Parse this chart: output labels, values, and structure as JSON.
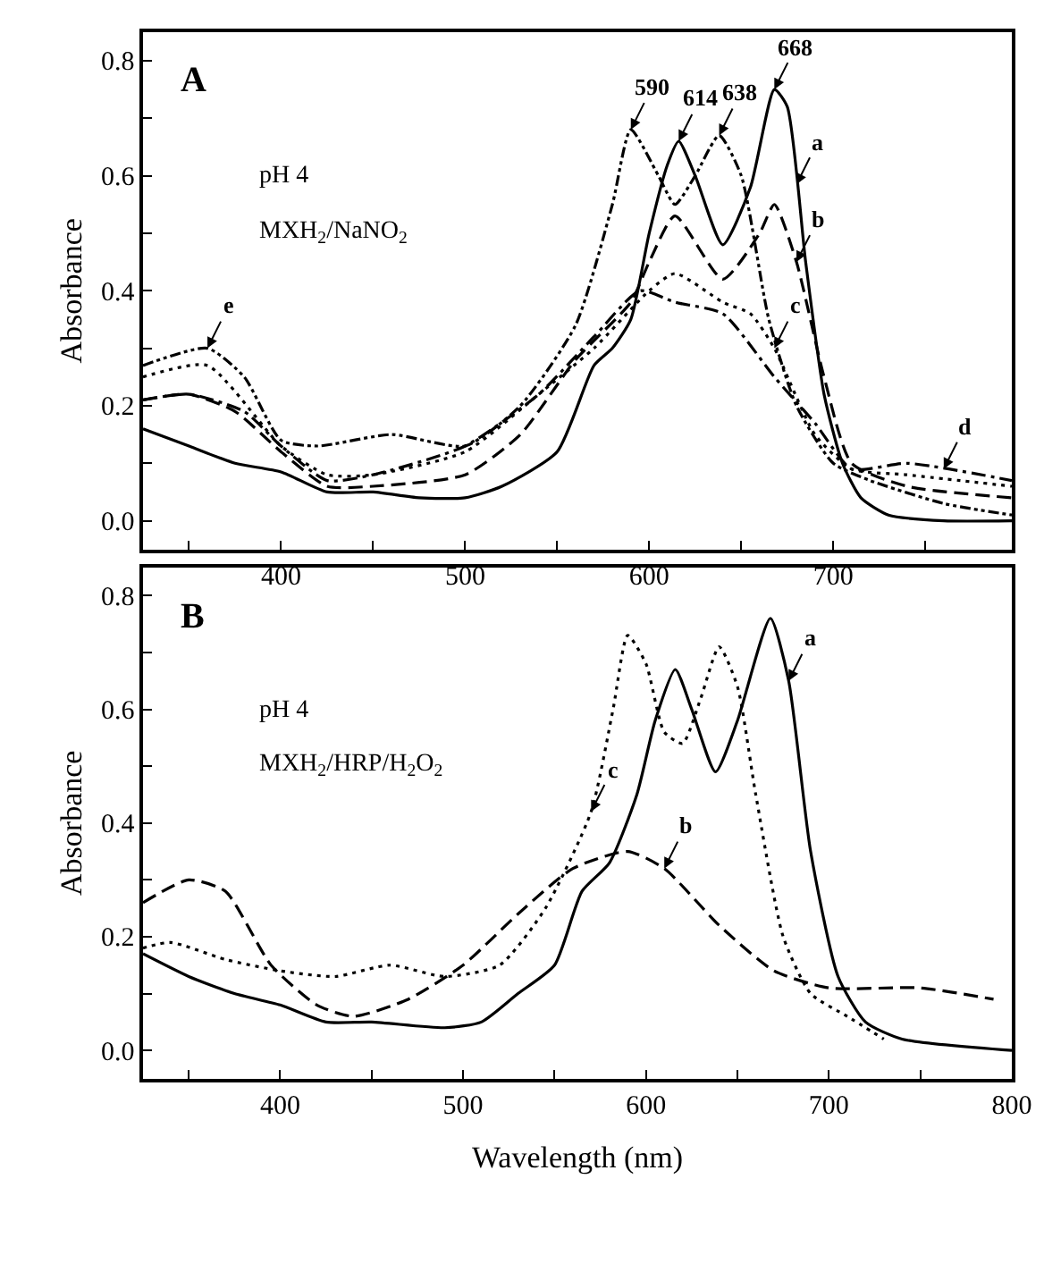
{
  "chart_data": [
    {
      "type": "line",
      "title": "A",
      "ylabel": "Absorbance",
      "xlim": [
        325,
        797
      ],
      "ylim": [
        -0.05,
        0.85
      ],
      "xticks": [
        {
          "value": 350,
          "label": null
        },
        400,
        {
          "value": 450,
          "label": null
        },
        500,
        {
          "value": 550,
          "label": null
        },
        600,
        {
          "value": 650,
          "label": null
        },
        700,
        {
          "value": 750,
          "label": null
        }
      ],
      "yticks": [
        "0.0",
        {
          "value": 0.1,
          "label": null
        },
        0.2,
        {
          "value": 0.3,
          "label": null
        },
        0.4,
        {
          "value": 0.5,
          "label": null
        },
        0.6,
        {
          "value": 0.7,
          "label": null
        },
        0.8
      ],
      "grid": false,
      "series": [
        {
          "color": "#000000",
          "line_style": "solid",
          "x": [
            325,
            350,
            375,
            400,
            425,
            450,
            475,
            500,
            520,
            550,
            570,
            580,
            590,
            600,
            610,
            616,
            625,
            640,
            655,
            668,
            675,
            685,
            695,
            705,
            715,
            730,
            760,
            797
          ],
          "values": [
            0.16,
            0.13,
            0.1,
            0.085,
            0.05,
            0.05,
            0.04,
            0.04,
            0.06,
            0.12,
            0.27,
            0.3,
            0.35,
            0.5,
            0.62,
            0.66,
            0.6,
            0.48,
            0.58,
            0.75,
            0.72,
            0.45,
            0.22,
            0.1,
            0.04,
            0.01,
            0.0,
            0.0
          ]
        },
        {
          "color": "#000000",
          "line_style": "dashed",
          "x": [
            325,
            350,
            375,
            400,
            425,
            450,
            500,
            530,
            560,
            590,
            600,
            614,
            640,
            660,
            668,
            680,
            695,
            710,
            740,
            797
          ],
          "values": [
            0.21,
            0.22,
            0.19,
            0.12,
            0.06,
            0.06,
            0.08,
            0.15,
            0.28,
            0.38,
            0.45,
            0.53,
            0.42,
            0.5,
            0.55,
            0.45,
            0.25,
            0.1,
            0.06,
            0.04
          ]
        },
        {
          "color": "#000000",
          "line_style": "dotted",
          "x": [
            325,
            360,
            400,
            425,
            450,
            500,
            540,
            570,
            600,
            614,
            640,
            655,
            668,
            690,
            710,
            740,
            797
          ],
          "values": [
            0.25,
            0.27,
            0.13,
            0.08,
            0.08,
            0.12,
            0.22,
            0.3,
            0.4,
            0.43,
            0.38,
            0.36,
            0.3,
            0.15,
            0.09,
            0.08,
            0.06
          ]
        },
        {
          "color": "#000000",
          "line_style": "dashdot",
          "x": [
            325,
            350,
            380,
            400,
            425,
            450,
            500,
            540,
            570,
            595,
            614,
            640,
            668,
            690,
            710,
            740,
            797
          ],
          "values": [
            0.21,
            0.22,
            0.19,
            0.13,
            0.07,
            0.08,
            0.13,
            0.22,
            0.32,
            0.4,
            0.38,
            0.36,
            0.25,
            0.17,
            0.09,
            0.1,
            0.07
          ]
        },
        {
          "color": "#000000",
          "line_style": "dashdotdot",
          "x": [
            325,
            360,
            380,
            400,
            420,
            460,
            500,
            530,
            560,
            580,
            590,
            605,
            614,
            625,
            638,
            650,
            665,
            680,
            700,
            720,
            760,
            797
          ],
          "values": [
            0.27,
            0.3,
            0.25,
            0.14,
            0.13,
            0.15,
            0.13,
            0.2,
            0.34,
            0.55,
            0.68,
            0.6,
            0.55,
            0.6,
            0.67,
            0.6,
            0.35,
            0.2,
            0.1,
            0.07,
            0.03,
            0.01
          ]
        }
      ],
      "annotations": [
        "pH 4",
        "MXH$_{2}$/NaNO$_{2}$",
        {
          "text": "590",
          "x": 590,
          "y": 0.68
        },
        {
          "text": "614",
          "x": 616,
          "y": 0.66
        },
        {
          "text": "638",
          "x": 638,
          "y": 0.67
        },
        {
          "text": "668",
          "x": 668,
          "y": 0.75
        },
        {
          "text": "a",
          "x": 680,
          "y": 0.585
        },
        {
          "text": "b",
          "x": 680,
          "y": 0.45
        },
        {
          "text": "c",
          "x": 668,
          "y": 0.3
        },
        {
          "text": "d",
          "x": 760,
          "y": 0.09
        },
        {
          "text": "e",
          "x": 360,
          "y": 0.3
        }
      ]
    },
    {
      "type": "line",
      "title": "B",
      "xlabel": "Wavelength (nm)",
      "ylabel": "Absorbance",
      "xlim": [
        325,
        800
      ],
      "ylim": [
        -0.05,
        0.85
      ],
      "xticks": [
        {
          "value": 350,
          "label": null
        },
        400,
        {
          "value": 450,
          "label": null
        },
        500,
        {
          "value": 550,
          "label": null
        },
        600,
        {
          "value": 650,
          "label": null
        },
        700,
        {
          "value": 750,
          "label": null
        },
        800
      ],
      "yticks": [
        "0.0",
        {
          "value": 0.1,
          "label": null
        },
        0.2,
        {
          "value": 0.3,
          "label": null
        },
        0.4,
        {
          "value": 0.5,
          "label": null
        },
        0.6,
        {
          "value": 0.7,
          "label": null
        },
        0.8
      ],
      "grid": false,
      "series": [
        {
          "color": "#000000",
          "line_style": "solid",
          "x": [
            325,
            350,
            375,
            400,
            425,
            450,
            490,
            510,
            530,
            550,
            565,
            580,
            595,
            605,
            616,
            625,
            638,
            650,
            668,
            678,
            690,
            705,
            720,
            740,
            800
          ],
          "values": [
            0.17,
            0.13,
            0.1,
            0.08,
            0.05,
            0.05,
            0.04,
            0.05,
            0.1,
            0.15,
            0.28,
            0.33,
            0.45,
            0.58,
            0.67,
            0.6,
            0.49,
            0.58,
            0.76,
            0.65,
            0.35,
            0.13,
            0.05,
            0.02,
            0.0
          ]
        },
        {
          "color": "#000000",
          "line_style": "dashed",
          "x": [
            325,
            350,
            370,
            395,
            420,
            440,
            470,
            500,
            530,
            560,
            590,
            610,
            640,
            670,
            700,
            750,
            790
          ],
          "values": [
            0.26,
            0.3,
            0.28,
            0.15,
            0.08,
            0.06,
            0.09,
            0.15,
            0.24,
            0.32,
            0.35,
            0.32,
            0.22,
            0.14,
            0.11,
            0.11,
            0.09
          ]
        },
        {
          "color": "#000000",
          "line_style": "dotted",
          "x": [
            325,
            340,
            370,
            400,
            430,
            460,
            490,
            520,
            545,
            570,
            582,
            590,
            600,
            610,
            620,
            630,
            640,
            650,
            660,
            675,
            690,
            710,
            730
          ],
          "values": [
            0.18,
            0.19,
            0.16,
            0.14,
            0.13,
            0.15,
            0.13,
            0.15,
            0.25,
            0.42,
            0.6,
            0.73,
            0.68,
            0.56,
            0.54,
            0.62,
            0.71,
            0.64,
            0.45,
            0.2,
            0.1,
            0.06,
            0.02
          ]
        }
      ],
      "annotations": [
        "pH 4",
        "MXH$_{2}$/HRP/H$_{2}$O$_{2}$",
        {
          "text": "a",
          "x": 678,
          "y": 0.65
        },
        {
          "text": "b",
          "x": 610,
          "y": 0.32
        },
        {
          "text": "c",
          "x": 570,
          "y": 0.42
        }
      ]
    }
  ]
}
